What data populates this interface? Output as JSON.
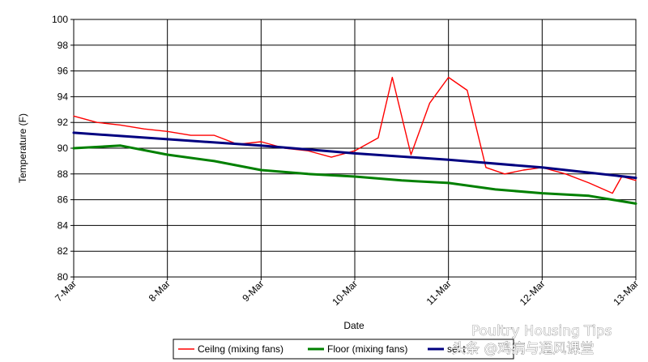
{
  "chart_data": {
    "type": "line",
    "title": "",
    "xlabel": "Date",
    "ylabel": "Temperature (F)",
    "ylim": [
      80,
      100
    ],
    "yticks": [
      80,
      82,
      84,
      86,
      88,
      90,
      92,
      94,
      96,
      98,
      100
    ],
    "xlim": [
      0,
      6
    ],
    "xtick_labels": [
      "7-Mar",
      "8-Mar",
      "9-Mar",
      "10-Mar",
      "11-Mar",
      "12-Mar",
      "13-Mar"
    ],
    "grid": true,
    "legend_position": "bottom",
    "series": [
      {
        "name": "Ceilng (mixing fans)",
        "color": "#ff0000",
        "x": [
          0,
          0.25,
          0.5,
          0.75,
          1.0,
          1.25,
          1.5,
          1.75,
          2.0,
          2.25,
          2.5,
          2.75,
          3.0,
          3.25,
          3.4,
          3.6,
          3.8,
          4.0,
          4.2,
          4.4,
          4.6,
          4.8,
          5.0,
          5.25,
          5.5,
          5.75,
          5.85,
          6.0
        ],
        "values": [
          92.5,
          92.0,
          91.8,
          91.5,
          91.3,
          91.0,
          91.0,
          90.3,
          90.5,
          90.0,
          89.8,
          89.3,
          89.8,
          90.8,
          95.5,
          89.5,
          93.5,
          95.5,
          94.5,
          88.5,
          88.0,
          88.3,
          88.5,
          88.0,
          87.3,
          86.5,
          87.8,
          87.5
        ]
      },
      {
        "name": "Floor (mixing fans)",
        "color": "#008000",
        "x": [
          0,
          0.5,
          1.0,
          1.5,
          2.0,
          2.5,
          3.0,
          3.5,
          4.0,
          4.5,
          5.0,
          5.5,
          5.75,
          6.0
        ],
        "values": [
          90.0,
          90.2,
          89.5,
          89.0,
          88.3,
          88.0,
          87.8,
          87.5,
          87.3,
          86.8,
          86.5,
          86.3,
          86.0,
          85.7
        ]
      },
      {
        "name": "set temperature",
        "color": "#000080",
        "x": [
          0,
          1,
          2,
          3,
          4,
          5,
          6
        ],
        "values": [
          91.2,
          90.7,
          90.2,
          89.6,
          89.1,
          88.5,
          87.7
        ]
      }
    ]
  },
  "legend": {
    "items": [
      "Ceilng (mixing fans)",
      "Floor (mixing fans)",
      "set t"
    ]
  },
  "watermark": {
    "line1": "Poultry Housing Tips",
    "line2": "头条 @鸡病与通风课堂"
  }
}
